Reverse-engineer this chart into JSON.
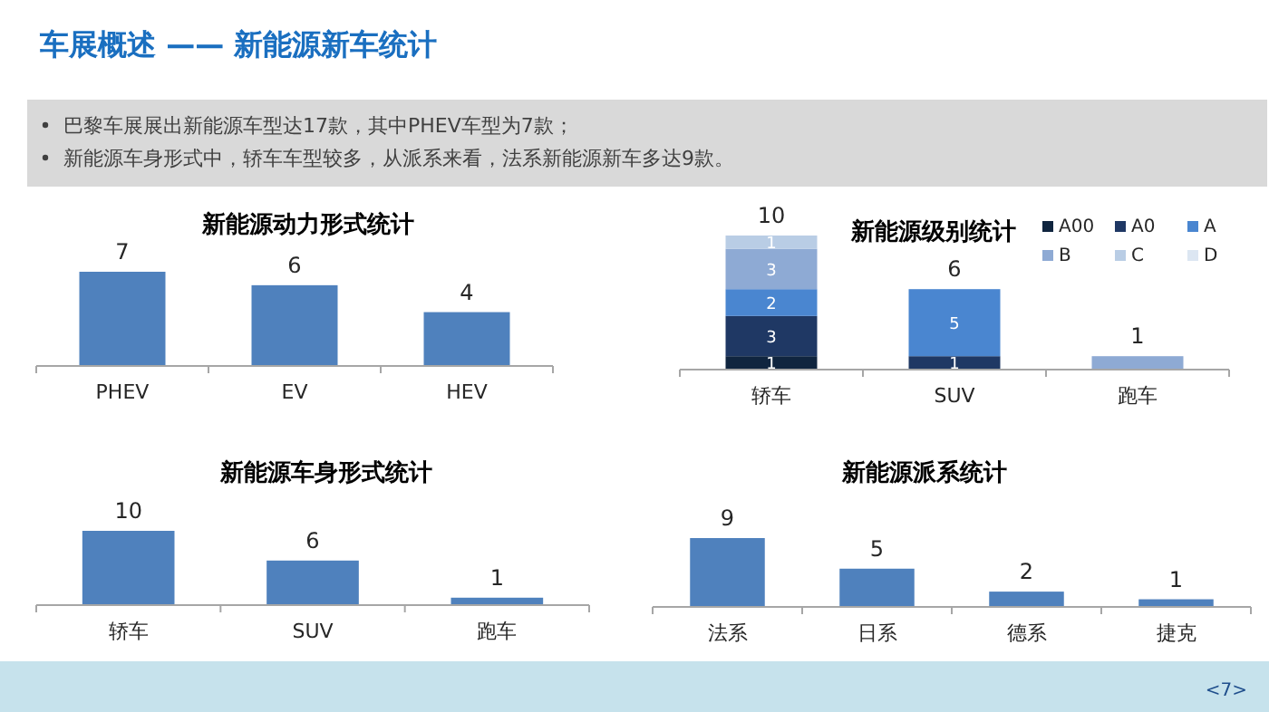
{
  "chart_data": [
    {
      "type": "other",
      "title": "车展概述 —— 新能源新车统计",
      "annotations": [
        "巴黎车展展出新能源车型达17款，其中PHEV车型为7款；",
        "新能源车身形式中，轿车车型较多，从派系来看，法系新能源新车多达9款。",
        "<7>"
      ]
    },
    {
      "type": "bar",
      "title": "新能源动力形式统计",
      "categories": [
        "PHEV",
        "EV",
        "HEV"
      ],
      "values": [
        7,
        6,
        4
      ],
      "color": "#4f81bd",
      "data_labels": true
    },
    {
      "type": "bar",
      "title": "新能源级别统计",
      "categories": [
        "轿车",
        "SUV",
        "跑车"
      ],
      "stacked": true,
      "legend": "top right",
      "totals": [
        "10",
        "6",
        "1"
      ],
      "series": [
        {
          "name": "A00",
          "color": "#10253f",
          "values": [
            1,
            null,
            null
          ],
          "value_labels": [
            "1",
            null,
            null
          ]
        },
        {
          "name": "A0",
          "color": "#1f3864",
          "values": [
            3,
            1,
            null
          ],
          "value_labels": [
            "3",
            "1",
            null
          ]
        },
        {
          "name": "A",
          "color": "#4a86d0",
          "values": [
            2,
            5,
            null
          ],
          "value_labels": [
            "2",
            "5",
            null
          ]
        },
        {
          "name": "B",
          "color": "#8eaad4",
          "values": [
            3,
            null,
            1
          ],
          "value_labels": [
            "3",
            null,
            null
          ]
        },
        {
          "name": "C",
          "color": "#b9cde5",
          "values": [
            1,
            null,
            null
          ],
          "value_labels": [
            "1",
            null,
            null
          ]
        },
        {
          "name": "D",
          "color": "#dce6f2",
          "values": [
            null,
            null,
            null
          ],
          "value_labels": [
            null,
            null,
            null
          ]
        }
      ]
    },
    {
      "type": "bar",
      "title": "新能源车身形式统计",
      "categories": [
        "轿车",
        "SUV",
        "跑车"
      ],
      "values": [
        10,
        6,
        1
      ],
      "color": "#4f81bd",
      "data_labels": true
    },
    {
      "type": "bar",
      "title": "新能源派系统计",
      "categories": [
        "法系",
        "日系",
        "德系",
        "捷克"
      ],
      "values": [
        9,
        5,
        2,
        1
      ],
      "color": "#4f81bd",
      "data_labels": true
    }
  ]
}
